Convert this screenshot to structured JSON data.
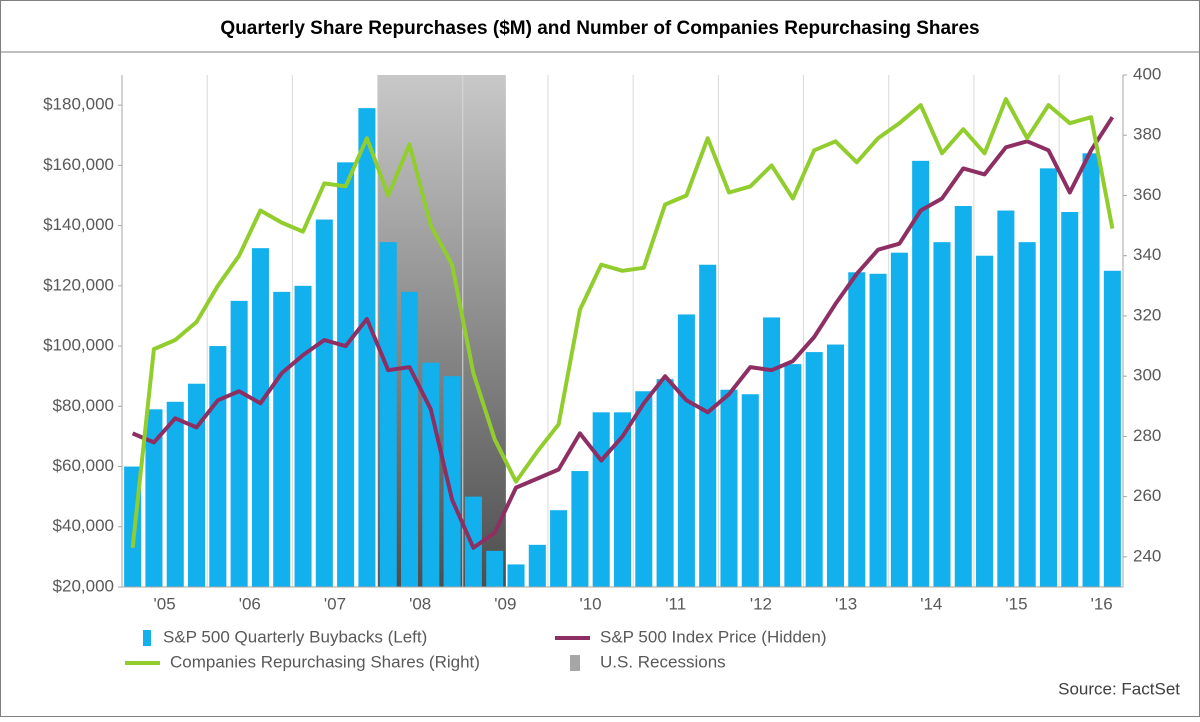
{
  "chart_data": {
    "type": "bar",
    "title": "Quarterly Share Repurchases ($M) and Number of Companies Repurchasing Shares",
    "source": "Source: FactSet",
    "categories": [
      null,
      "'05",
      null,
      null,
      null,
      "'06",
      null,
      null,
      null,
      "'07",
      null,
      null,
      null,
      "'08",
      null,
      null,
      null,
      "'09",
      null,
      null,
      null,
      "'10",
      null,
      null,
      null,
      "'11",
      null,
      null,
      null,
      "'12",
      null,
      null,
      null,
      "'13",
      null,
      null,
      null,
      "'14",
      null,
      null,
      null,
      "'15",
      null,
      null,
      null,
      "'16",
      null
    ],
    "series": [
      {
        "name": "S&P 500 Quarterly Buybacks (Left)",
        "type": "bar",
        "axis": "y",
        "color": "#12b0ec",
        "values": [
          60000,
          79000,
          81500,
          87500,
          100000,
          115000,
          132500,
          118000,
          120000,
          142000,
          161000,
          179000,
          134500,
          118000,
          94500,
          90000,
          50000,
          32000,
          27500,
          34000,
          45500,
          58500,
          78000,
          78000,
          85000,
          89000,
          110500,
          127000,
          85500,
          84000,
          109500,
          94000,
          98000,
          100500,
          124500,
          124000,
          131000,
          161500,
          134500,
          146500,
          130000,
          145000,
          134500,
          159000,
          144500,
          164000,
          125000
        ]
      },
      {
        "name": "S&P 500 Index Price (Hidden)",
        "type": "line",
        "axis": "y2",
        "color": "#8e2f63",
        "values": [
          281,
          278,
          286,
          283,
          292,
          295,
          291,
          301,
          307,
          312,
          310,
          319,
          302,
          303,
          289,
          259,
          243,
          248,
          263,
          266,
          269,
          281,
          272,
          280,
          291,
          300,
          292,
          288,
          294,
          303,
          302,
          305,
          313,
          324,
          334,
          342,
          344,
          355,
          359,
          369,
          367,
          376,
          378,
          375,
          361,
          375,
          386
        ]
      },
      {
        "name": "Companies Repurchasing Shares (Right)",
        "type": "line",
        "axis": "y2",
        "color": "#92cd2e",
        "values": [
          243,
          309,
          312,
          318,
          330,
          340,
          355,
          351,
          348,
          364,
          363,
          379,
          360,
          377,
          350,
          337,
          301,
          279,
          265,
          275,
          284,
          322,
          337,
          335,
          336,
          357,
          360,
          379,
          361,
          363,
          370,
          359,
          375,
          378,
          371,
          379,
          384,
          390,
          374,
          382,
          374,
          392,
          379,
          390,
          384,
          386,
          349
        ]
      },
      {
        "name": "U.S. Recessions",
        "type": "band",
        "color": "#a6a6a6",
        "values": [
          false,
          false,
          false,
          false,
          false,
          false,
          false,
          false,
          false,
          false,
          false,
          false,
          true,
          true,
          true,
          true,
          true,
          true,
          false,
          false,
          false,
          false,
          false,
          false,
          false,
          false,
          false,
          false,
          false,
          false,
          false,
          false,
          false,
          false,
          false,
          false,
          false,
          false,
          false,
          false,
          false,
          false,
          false,
          false,
          false,
          false,
          false
        ]
      }
    ],
    "ylim": [
      20000,
      190000
    ],
    "yticks": [
      {
        "value": 20000,
        "label": "$20,000"
      },
      {
        "value": 40000,
        "label": "$40,000"
      },
      {
        "value": 60000,
        "label": "$60,000"
      },
      {
        "value": 80000,
        "label": "$80,000"
      },
      {
        "value": 100000,
        "label": "$100,000"
      },
      {
        "value": 120000,
        "label": "$120,000"
      },
      {
        "value": 140000,
        "label": "$140,000"
      },
      {
        "value": 160000,
        "label": "$160,000"
      },
      {
        "value": 180000,
        "label": "$180,000"
      }
    ],
    "y2lim": [
      230,
      400
    ],
    "y2ticks": [
      240,
      260,
      280,
      300,
      320,
      340,
      360,
      380,
      400
    ],
    "grid": "x"
  }
}
